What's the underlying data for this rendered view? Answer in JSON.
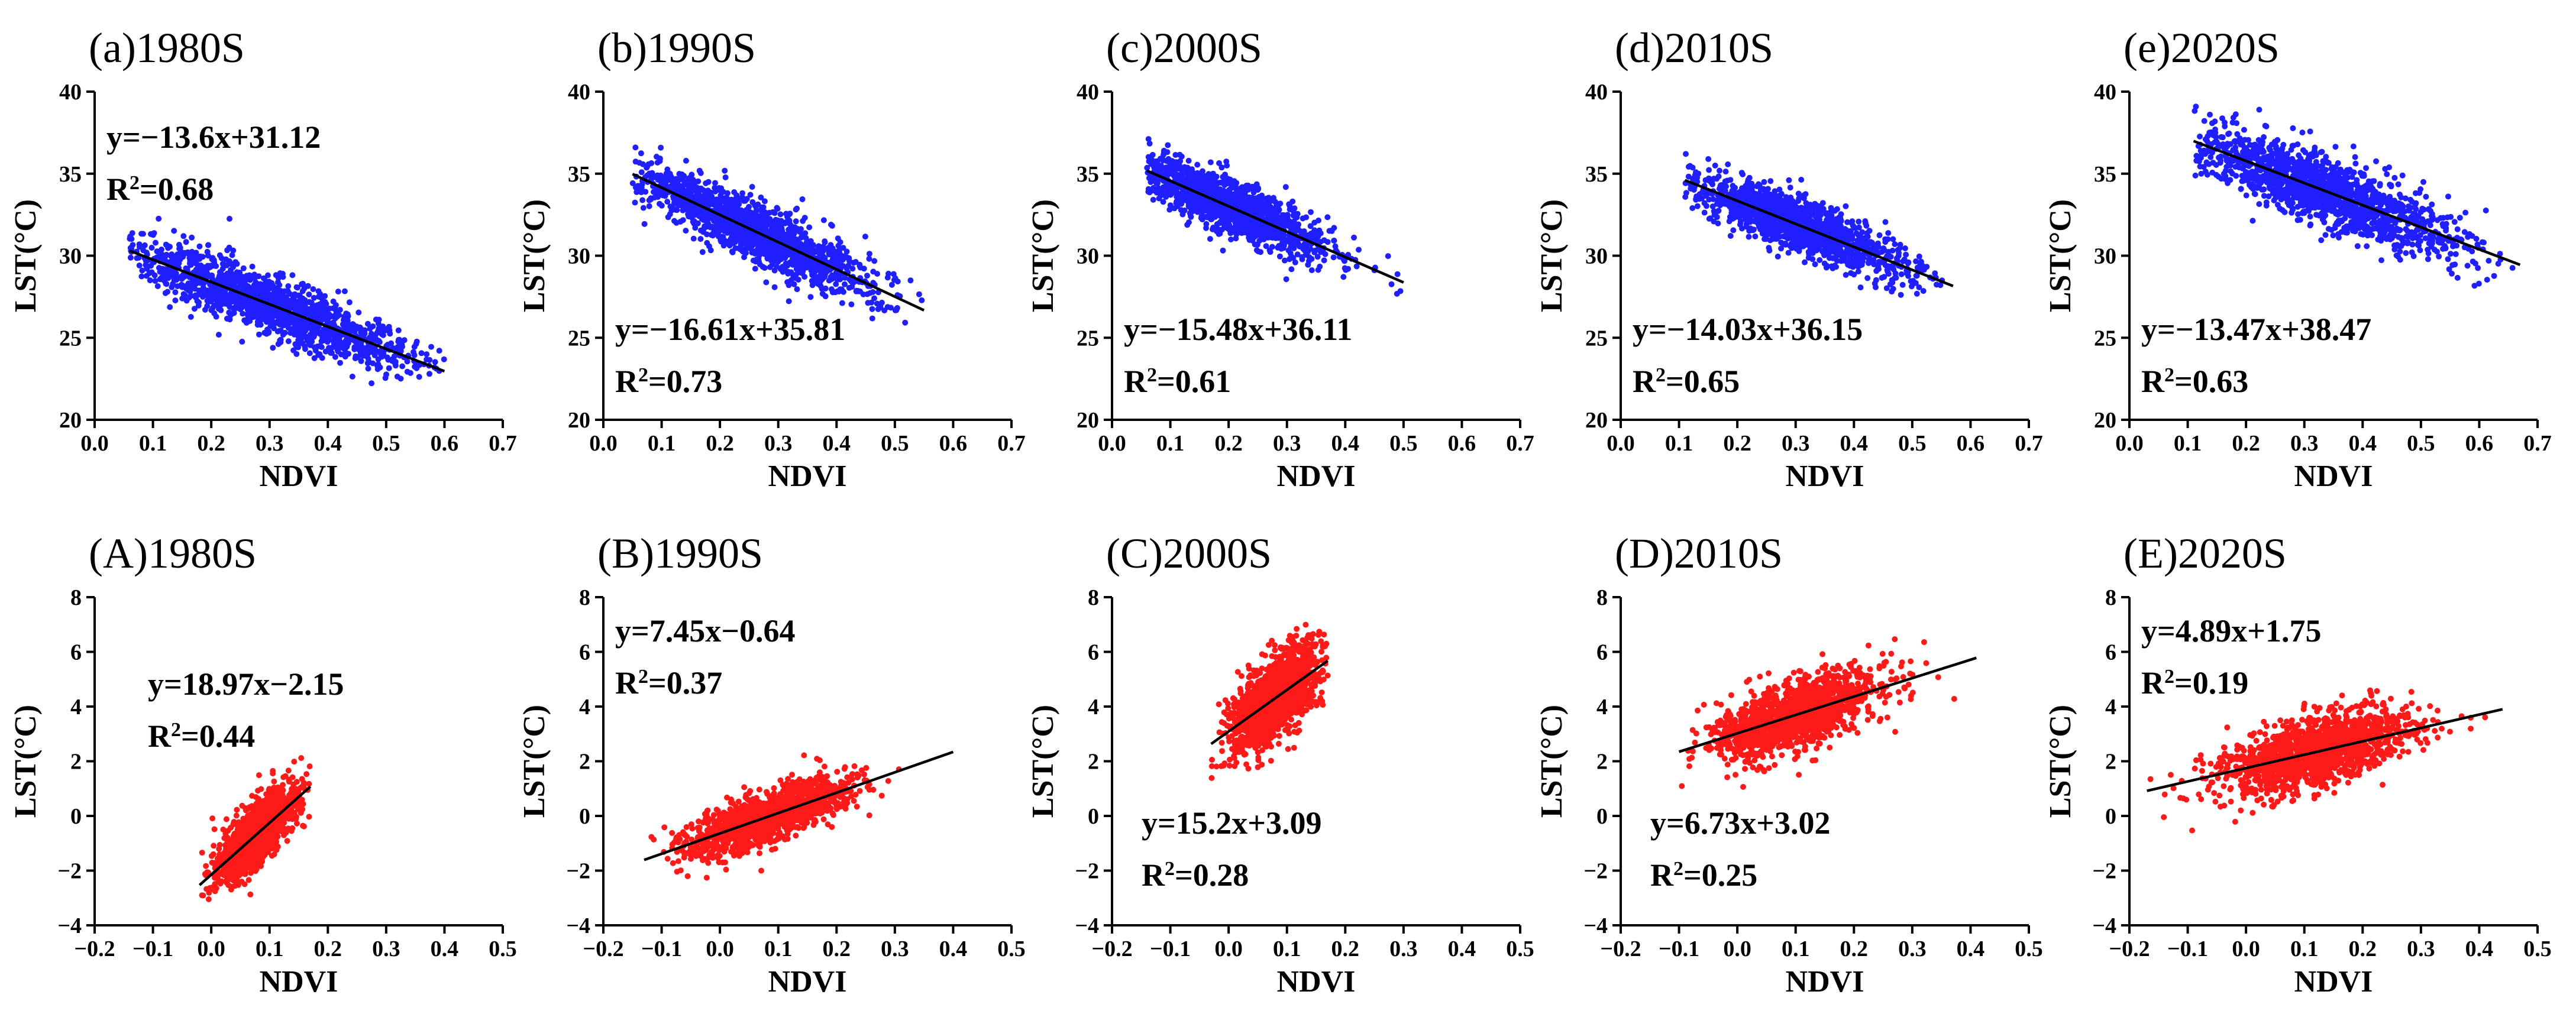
{
  "colors": {
    "blue": "#1f1fff",
    "red": "#ff1a1a",
    "axis": "#000000"
  },
  "chart_data": [
    {
      "type": "scatter",
      "panel": "a",
      "title": "(a)1980S",
      "xlabel": "NDVI",
      "ylabel": "LST(°C)",
      "xlim": [
        0.0,
        0.7
      ],
      "ylim": [
        20,
        40
      ],
      "xticks": [
        0.0,
        0.1,
        0.2,
        0.3,
        0.4,
        0.5,
        0.6,
        0.7
      ],
      "xtick_labels": [
        "0.0",
        "0.1",
        "0.2",
        "0.3",
        "0.4",
        "0.5",
        "0.6",
        "0.7"
      ],
      "yticks": [
        20,
        25,
        30,
        35,
        40
      ],
      "ytick_labels": [
        "20",
        "25",
        "30",
        "35",
        "40"
      ],
      "equation": "y=−13.6x+31.12",
      "r2_value": "=0.68",
      "slope": -13.6,
      "intercept": 31.12,
      "cloud": {
        "x_center": 0.3,
        "x_spread": 0.12,
        "x_range": [
          0.06,
          0.6
        ],
        "noise": 1.2,
        "n": 1500
      },
      "fit_x": [
        0.06,
        0.6
      ],
      "color": "blue",
      "label_pos": "top-left"
    },
    {
      "type": "scatter",
      "panel": "b",
      "title": "(b)1990S",
      "xlabel": "NDVI",
      "ylabel": "LST(°C)",
      "xlim": [
        0.0,
        0.7
      ],
      "ylim": [
        20,
        40
      ],
      "xticks": [
        0.0,
        0.1,
        0.2,
        0.3,
        0.4,
        0.5,
        0.6,
        0.7
      ],
      "xtick_labels": [
        "0.0",
        "0.1",
        "0.2",
        "0.3",
        "0.4",
        "0.5",
        "0.6",
        "0.7"
      ],
      "yticks": [
        20,
        25,
        30,
        35,
        40
      ],
      "ytick_labels": [
        "20",
        "25",
        "30",
        "35",
        "40"
      ],
      "equation": "y=−16.61x+35.81",
      "r2_value": "=0.73",
      "slope": -16.61,
      "intercept": 35.81,
      "cloud": {
        "x_center": 0.25,
        "x_spread": 0.1,
        "x_range": [
          0.05,
          0.55
        ],
        "noise": 1.2,
        "n": 1500
      },
      "fit_x": [
        0.05,
        0.55
      ],
      "color": "blue",
      "label_pos": "bottom-left"
    },
    {
      "type": "scatter",
      "panel": "c",
      "title": "(c)2000S",
      "xlabel": "NDVI",
      "ylabel": "LST(°C)",
      "xlim": [
        0.0,
        0.7
      ],
      "ylim": [
        20,
        40
      ],
      "xticks": [
        0.0,
        0.1,
        0.2,
        0.3,
        0.4,
        0.5,
        0.6,
        0.7
      ],
      "xtick_labels": [
        "0.0",
        "0.1",
        "0.2",
        "0.3",
        "0.4",
        "0.5",
        "0.6",
        "0.7"
      ],
      "yticks": [
        20,
        25,
        30,
        35,
        40
      ],
      "ytick_labels": [
        "20",
        "25",
        "30",
        "35",
        "40"
      ],
      "equation": "y=−15.48x+36.11",
      "r2_value": "=0.61",
      "slope": -15.48,
      "intercept": 36.11,
      "cloud": {
        "x_center": 0.2,
        "x_spread": 0.08,
        "x_range": [
          0.06,
          0.5
        ],
        "noise": 1.1,
        "n": 1400
      },
      "fit_x": [
        0.06,
        0.5
      ],
      "color": "blue",
      "label_pos": "bottom-left"
    },
    {
      "type": "scatter",
      "panel": "d",
      "title": "(d)2010S",
      "xlabel": "NDVI",
      "ylabel": "LST(°C)",
      "xlim": [
        0.0,
        0.7
      ],
      "ylim": [
        20,
        40
      ],
      "xticks": [
        0.0,
        0.1,
        0.2,
        0.3,
        0.4,
        0.5,
        0.6,
        0.7
      ],
      "xtick_labels": [
        "0.0",
        "0.1",
        "0.2",
        "0.3",
        "0.4",
        "0.5",
        "0.6",
        "0.7"
      ],
      "yticks": [
        20,
        25,
        30,
        35,
        40
      ],
      "ytick_labels": [
        "20",
        "25",
        "30",
        "35",
        "40"
      ],
      "equation": "y=−14.03x+36.15",
      "r2_value": "=0.65",
      "slope": -14.03,
      "intercept": 36.15,
      "cloud": {
        "x_center": 0.3,
        "x_spread": 0.09,
        "x_range": [
          0.11,
          0.57
        ],
        "noise": 1.1,
        "n": 1400
      },
      "fit_x": [
        0.11,
        0.57
      ],
      "color": "blue",
      "label_pos": "bottom-left"
    },
    {
      "type": "scatter",
      "panel": "e",
      "title": "(e)2020S",
      "xlabel": "NDVI",
      "ylabel": "LST(°C)",
      "xlim": [
        0.0,
        0.7
      ],
      "ylim": [
        20,
        40
      ],
      "xticks": [
        0.0,
        0.1,
        0.2,
        0.3,
        0.4,
        0.5,
        0.6,
        0.7
      ],
      "xtick_labels": [
        "0.0",
        "0.1",
        "0.2",
        "0.3",
        "0.4",
        "0.5",
        "0.6",
        "0.7"
      ],
      "yticks": [
        20,
        25,
        30,
        35,
        40
      ],
      "ytick_labels": [
        "20",
        "25",
        "30",
        "35",
        "40"
      ],
      "equation": "y=−13.47x+38.47",
      "r2_value": "=0.63",
      "slope": -13.47,
      "intercept": 38.47,
      "cloud": {
        "x_center": 0.33,
        "x_spread": 0.11,
        "x_range": [
          0.11,
          0.67
        ],
        "noise": 1.4,
        "n": 1500
      },
      "fit_x": [
        0.11,
        0.67
      ],
      "color": "blue",
      "label_pos": "bottom-left"
    },
    {
      "type": "scatter",
      "panel": "A",
      "title": "(A)1980S",
      "xlabel": "NDVI",
      "ylabel": "LST(°C)",
      "xlim": [
        -0.2,
        0.5
      ],
      "ylim": [
        -4,
        8
      ],
      "xticks": [
        -0.2,
        -0.1,
        0.0,
        0.1,
        0.2,
        0.3,
        0.4,
        0.5
      ],
      "xtick_labels": [
        "−0.2",
        "−0.1",
        "0.0",
        "0.1",
        "0.2",
        "0.3",
        "0.4",
        "0.5"
      ],
      "yticks": [
        -4,
        -2,
        0,
        2,
        4,
        6,
        8
      ],
      "ytick_labels": [
        "−4",
        "−2",
        "0",
        "2",
        "4",
        "6",
        "8"
      ],
      "equation": "y=18.97x−2.15",
      "r2_value": "=0.44",
      "slope": 18.97,
      "intercept": -2.15,
      "cloud": {
        "x_center": 0.08,
        "x_spread": 0.035,
        "x_range": [
          -0.02,
          0.17
        ],
        "noise": 0.75,
        "n": 1300
      },
      "fit_x": [
        -0.02,
        0.17
      ],
      "color": "red",
      "label_pos": "top-left"
    },
    {
      "type": "scatter",
      "panel": "B",
      "title": "(B)1990S",
      "xlabel": "NDVI",
      "ylabel": "LST(°C)",
      "xlim": [
        -0.2,
        0.5
      ],
      "ylim": [
        -4,
        8
      ],
      "xticks": [
        -0.2,
        -0.1,
        0.0,
        0.1,
        0.2,
        0.3,
        0.4,
        0.5
      ],
      "xtick_labels": [
        "−0.2",
        "−0.1",
        "0.0",
        "0.1",
        "0.2",
        "0.3",
        "0.4",
        "0.5"
      ],
      "yticks": [
        -4,
        -2,
        0,
        2,
        4,
        6,
        8
      ],
      "ytick_labels": [
        "−4",
        "−2",
        "0",
        "2",
        "4",
        "6",
        "8"
      ],
      "equation": "y=7.45x−0.64",
      "r2_value": "=0.37",
      "slope": 7.45,
      "intercept": -0.64,
      "cloud": {
        "x_center": 0.08,
        "x_spread": 0.07,
        "x_range": [
          -0.13,
          0.4
        ],
        "noise": 0.6,
        "n": 1300
      },
      "fit_x": [
        -0.13,
        0.4
      ],
      "color": "red",
      "label_pos": "top-left"
    },
    {
      "type": "scatter",
      "panel": "C",
      "title": "(C)2000S",
      "xlabel": "NDVI",
      "ylabel": "LST(°C)",
      "xlim": [
        -0.2,
        0.5
      ],
      "ylim": [
        -4,
        8
      ],
      "xticks": [
        -0.2,
        -0.1,
        0.0,
        0.1,
        0.2,
        0.3,
        0.4,
        0.5
      ],
      "xtick_labels": [
        "−0.2",
        "−0.1",
        "0.0",
        "0.1",
        "0.2",
        "0.3",
        "0.4",
        "0.5"
      ],
      "yticks": [
        -4,
        -2,
        0,
        2,
        4,
        6,
        8
      ],
      "ytick_labels": [
        "−4",
        "−2",
        "0",
        "2",
        "4",
        "6",
        "8"
      ],
      "equation": "y=15.2x+3.09",
      "r2_value": "=0.28",
      "slope": 15.2,
      "intercept": 3.09,
      "cloud": {
        "x_center": 0.08,
        "x_spread": 0.04,
        "x_range": [
          -0.03,
          0.17
        ],
        "noise": 0.95,
        "n": 1300
      },
      "fit_x": [
        -0.03,
        0.17
      ],
      "color": "red",
      "label_pos": "bottom-left"
    },
    {
      "type": "scatter",
      "panel": "D",
      "title": "(D)2010S",
      "xlabel": "NDVI",
      "ylabel": "LST(°C)",
      "xlim": [
        -0.2,
        0.5
      ],
      "ylim": [
        -4,
        8
      ],
      "xticks": [
        -0.2,
        -0.1,
        0.0,
        0.1,
        0.2,
        0.3,
        0.4,
        0.5
      ],
      "xtick_labels": [
        "−0.2",
        "−0.1",
        "0.0",
        "0.1",
        "0.2",
        "0.3",
        "0.4",
        "0.5"
      ],
      "yticks": [
        -4,
        -2,
        0,
        2,
        4,
        6,
        8
      ],
      "ytick_labels": [
        "−4",
        "−2",
        "0",
        "2",
        "4",
        "6",
        "8"
      ],
      "equation": "y=6.73x+3.02",
      "r2_value": "=0.25",
      "slope": 6.73,
      "intercept": 3.02,
      "cloud": {
        "x_center": 0.1,
        "x_spread": 0.07,
        "x_range": [
          -0.1,
          0.4
        ],
        "noise": 0.85,
        "n": 1400
      },
      "fit_x": [
        -0.1,
        0.41
      ],
      "color": "red",
      "label_pos": "bottom-left"
    },
    {
      "type": "scatter",
      "panel": "E",
      "title": "(E)2020S",
      "xlabel": "NDVI",
      "ylabel": "LST(°C)",
      "xlim": [
        -0.2,
        0.5
      ],
      "ylim": [
        -4,
        8
      ],
      "xticks": [
        -0.2,
        -0.1,
        0.0,
        0.1,
        0.2,
        0.3,
        0.4,
        0.5
      ],
      "xtick_labels": [
        "−0.2",
        "−0.1",
        "0.0",
        "0.1",
        "0.2",
        "0.3",
        "0.4",
        "0.5"
      ],
      "yticks": [
        -4,
        -2,
        0,
        2,
        4,
        6,
        8
      ],
      "ytick_labels": [
        "−4",
        "−2",
        "0",
        "2",
        "4",
        "6",
        "8"
      ],
      "equation": "y=4.89x+1.75",
      "r2_value": "=0.19",
      "slope": 4.89,
      "intercept": 1.75,
      "cloud": {
        "x_center": 0.12,
        "x_spread": 0.08,
        "x_range": [
          -0.17,
          0.45
        ],
        "noise": 0.8,
        "n": 1500
      },
      "fit_x": [
        -0.17,
        0.44
      ],
      "color": "red",
      "label_pos": "top-left"
    }
  ]
}
